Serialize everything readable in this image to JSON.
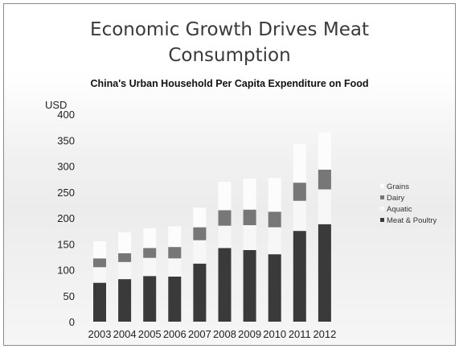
{
  "slide": {
    "title": "Economic Growth Drives Meat\nConsumption"
  },
  "chart_data": {
    "type": "bar",
    "stacked": true,
    "title": "China's Urban Household Per Capita Expenditure on Food",
    "ylabel": "USD",
    "xlabel": "",
    "ylim": [
      0,
      400
    ],
    "yticks": [
      0,
      50,
      100,
      150,
      200,
      250,
      300,
      350,
      400
    ],
    "grid": false,
    "legend_position": "right",
    "categories": [
      "2003",
      "2004",
      "2005",
      "2006",
      "2007",
      "2008",
      "2009",
      "2010",
      "2011",
      "2012"
    ],
    "series": [
      {
        "name": "Meat & Poultry",
        "color": "#3a3a3a",
        "values": [
          75,
          82,
          88,
          87,
          112,
          142,
          138,
          130,
          175,
          188
        ]
      },
      {
        "name": "Aquatic",
        "color": "#f7f7f7",
        "values": [
          30,
          33,
          35,
          35,
          45,
          43,
          48,
          52,
          58,
          67
        ]
      },
      {
        "name": "Dairy",
        "color": "#777777",
        "values": [
          17,
          17,
          19,
          22,
          25,
          30,
          30,
          30,
          35,
          38
        ]
      },
      {
        "name": "Grains",
        "color": "#fcfcfc",
        "values": [
          33,
          40,
          38,
          40,
          38,
          55,
          60,
          65,
          75,
          72
        ]
      }
    ],
    "legend_order": [
      "Grains",
      "Dairy",
      "Aquatic",
      "Meat & Poultry"
    ]
  }
}
